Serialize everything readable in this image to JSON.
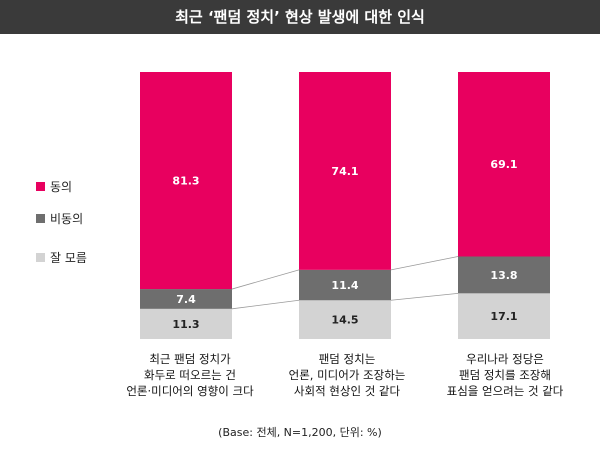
{
  "title": "최근 ‘팬덤 정치’ 현상 발생에 대한 인식",
  "legend": [
    {
      "label": "동의",
      "color": "#e8005f"
    },
    {
      "label": "비동의",
      "color": "#6e6e6e"
    },
    {
      "label": "잘 모름",
      "color": "#d3d3d3"
    }
  ],
  "note": "(Base: 전체, N=1,200, 단위: %)",
  "chart_data": {
    "type": "bar",
    "stacked": true,
    "categories": [
      "최근 팬덤 정치가\n화두로 떠오르는 건\n언론·미디어의 영향이 크다",
      "팬덤 정치는\n언론, 미디어가 조장하는\n사회적 현상인 것 같다",
      "우리나라 정당은\n팬덤 정치를 조장해\n표심을 얻으려는 것 같다"
    ],
    "series": [
      {
        "name": "잘 모름",
        "values": [
          11.3,
          14.5,
          17.1
        ],
        "color": "#d3d3d3",
        "label_color": "#222222"
      },
      {
        "name": "비동의",
        "values": [
          7.4,
          11.4,
          13.8
        ],
        "color": "#6e6e6e",
        "label_color": "#ffffff"
      },
      {
        "name": "동의",
        "values": [
          81.3,
          74.1,
          69.1
        ],
        "color": "#e8005f",
        "label_color": "#ffffff"
      }
    ],
    "ylim": [
      0,
      100
    ]
  }
}
